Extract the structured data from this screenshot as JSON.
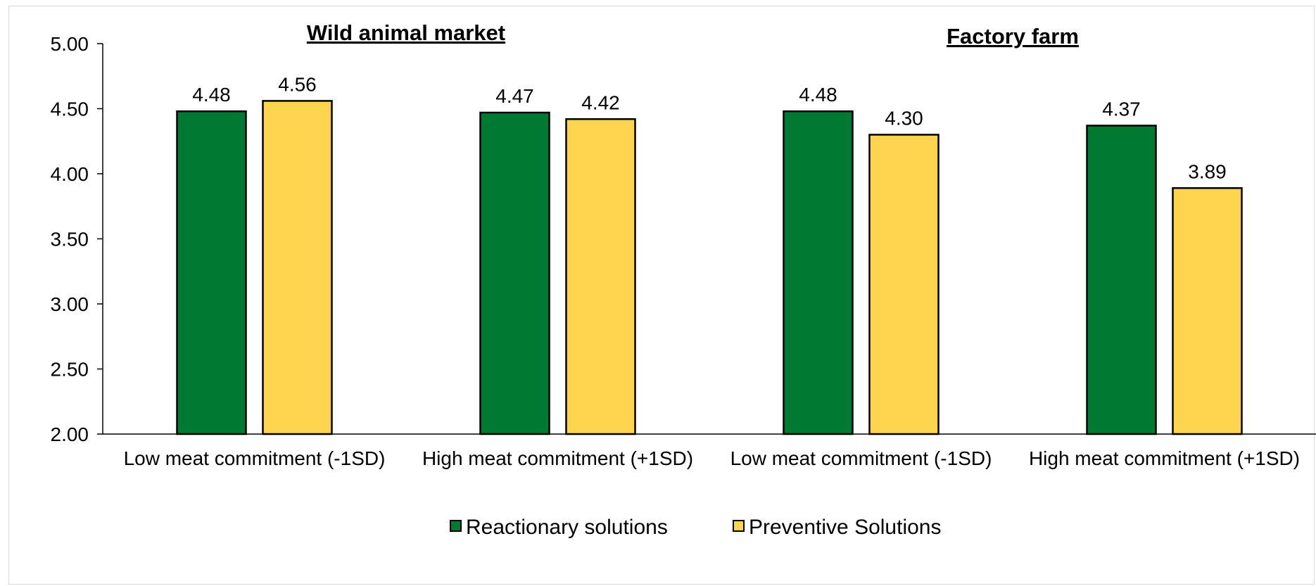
{
  "chart_data": {
    "type": "bar",
    "panels": [
      {
        "title": "Wild animal market",
        "categories": [
          "Low meat commitment (-1SD)",
          "High meat commitment (+1SD)"
        ]
      },
      {
        "title": "Factory farm",
        "categories": [
          "Low meat commitment (-1SD)",
          "High meat commitment (+1SD)"
        ]
      }
    ],
    "categories": [
      "Low meat commitment (-1SD)",
      "High meat commitment (+1SD)",
      "Low meat commitment (-1SD)",
      "High meat commitment (+1SD)"
    ],
    "series": [
      {
        "name": "Reactionary solutions",
        "color": "#007A33",
        "values": [
          4.48,
          4.47,
          4.48,
          4.37
        ],
        "labels": [
          "4.48",
          "4.47",
          "4.48",
          "4.37"
        ]
      },
      {
        "name": "Preventive Solutions",
        "color": "#FFD54F",
        "values": [
          4.56,
          4.42,
          4.3,
          3.89
        ],
        "labels": [
          "4.56",
          "4.42",
          "4.30",
          "3.89"
        ]
      }
    ],
    "ylim": [
      2.0,
      5.0
    ],
    "yticks": [
      "2.00",
      "2.50",
      "3.00",
      "3.50",
      "4.00",
      "4.50",
      "5.00"
    ],
    "title": "",
    "xlabel": "",
    "ylabel": "",
    "grid": false,
    "legend_position": "bottom-center"
  }
}
